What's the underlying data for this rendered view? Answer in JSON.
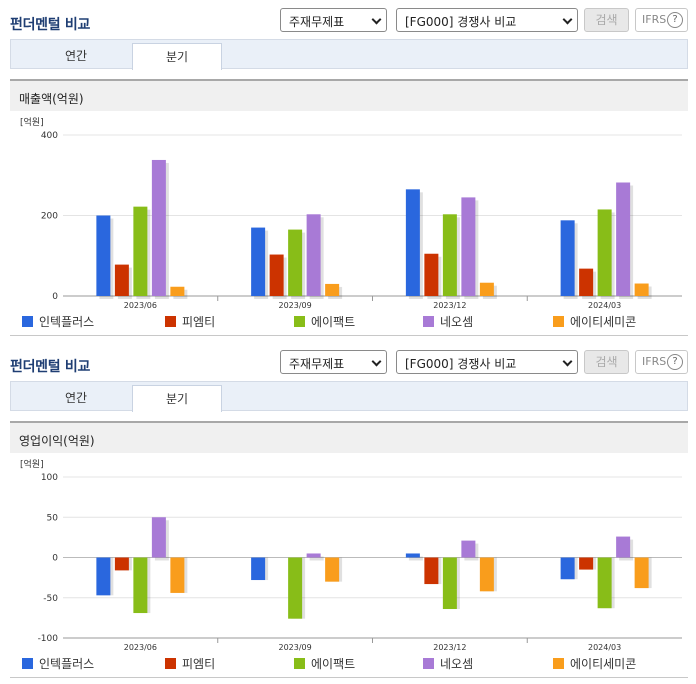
{
  "colors": {
    "series": [
      "#2a67de",
      "#cc3300",
      "#88bd18",
      "#a87ad6",
      "#f99d1c"
    ],
    "title": "#1f3e73"
  },
  "legend": [
    "인텍플러스",
    "피엠티",
    "에이팩트",
    "네오셈",
    "에이티세미콘"
  ],
  "panels": [
    {
      "title": "펀더멘털 비교",
      "select1": "주재무제표",
      "select2": "[FG000] 경쟁사 비교",
      "search_label": "검색",
      "ifrs_label": "IFRS",
      "help_icon": "?",
      "tabs": [
        "연간",
        "분기"
      ],
      "section_label": "매출액(억원)",
      "chart_data": {
        "type": "bar",
        "unit": "[억원]",
        "categories": [
          "2023/06",
          "2023/09",
          "2023/12",
          "2024/03"
        ],
        "ylim": [
          0,
          400
        ],
        "yticks": [
          0,
          200,
          400
        ],
        "series": [
          {
            "name": "인텍플러스",
            "values": [
              200,
              170,
              265,
              188
            ]
          },
          {
            "name": "피엠티",
            "values": [
              78,
              103,
              105,
              68
            ]
          },
          {
            "name": "에이팩트",
            "values": [
              222,
              165,
              203,
              215
            ]
          },
          {
            "name": "네오셈",
            "values": [
              338,
              203,
              245,
              282
            ]
          },
          {
            "name": "에이티세미콘",
            "values": [
              23,
              30,
              33,
              31
            ]
          }
        ]
      }
    },
    {
      "title": "펀더멘털 비교",
      "select1": "주재무제표",
      "select2": "[FG000] 경쟁사 비교",
      "search_label": "검색",
      "ifrs_label": "IFRS",
      "help_icon": "?",
      "tabs": [
        "연간",
        "분기"
      ],
      "section_label": "영업이익(억원)",
      "chart_data": {
        "type": "bar",
        "unit": "[억원]",
        "categories": [
          "2023/06",
          "2023/09",
          "2023/12",
          "2024/03"
        ],
        "ylim": [
          -100,
          100
        ],
        "yticks": [
          -100,
          -50,
          0,
          50,
          100
        ],
        "series": [
          {
            "name": "인텍플러스",
            "values": [
              -47,
              -28,
              5,
              -27
            ]
          },
          {
            "name": "피엠티",
            "values": [
              -16,
              0,
              -33,
              -15
            ]
          },
          {
            "name": "에이팩트",
            "values": [
              -69,
              -76,
              -64,
              -63
            ]
          },
          {
            "name": "네오셈",
            "values": [
              50,
              5,
              21,
              26
            ]
          },
          {
            "name": "에이티세미콘",
            "values": [
              -44,
              -30,
              -42,
              -38
            ]
          }
        ]
      }
    }
  ]
}
